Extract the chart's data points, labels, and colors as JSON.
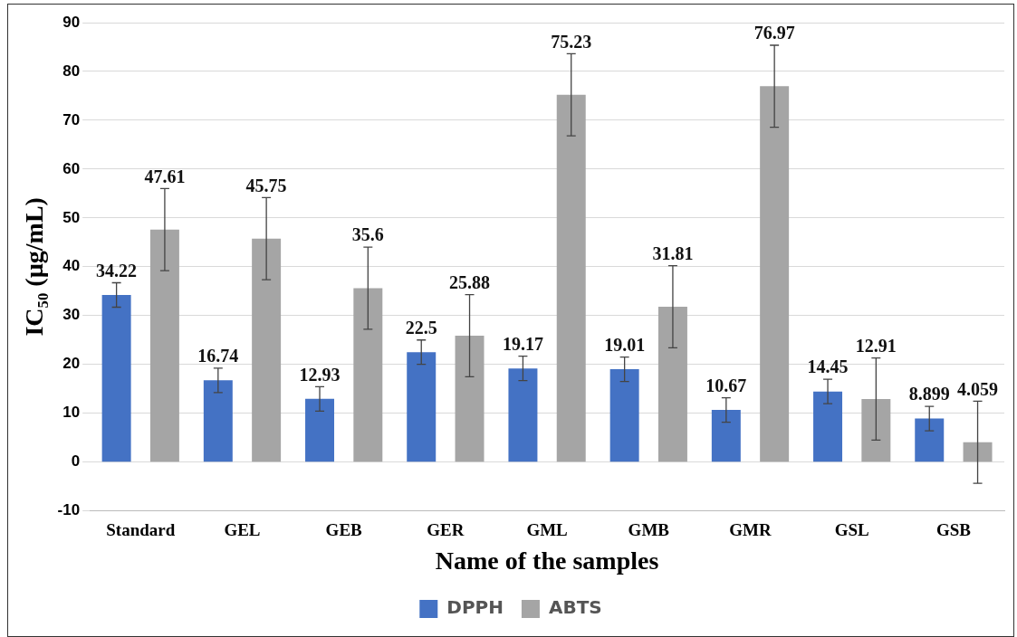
{
  "chart_data": {
    "type": "bar",
    "xlabel": "Name of the samples",
    "ylabel": "IC₅₀ (µg/mL)",
    "categories": [
      "Standard",
      "GEL",
      "GEB",
      "GER",
      "GML",
      "GMB",
      "GMR",
      "GSL",
      "GSB"
    ],
    "series": [
      {
        "name": "DPPH",
        "color": "#4472c4",
        "values": [
          34.22,
          16.74,
          12.93,
          22.5,
          19.17,
          19.01,
          10.67,
          14.45,
          8.899
        ],
        "errors": [
          2.5,
          2.5,
          2.5,
          2.5,
          2.5,
          2.5,
          2.5,
          2.5,
          2.5
        ]
      },
      {
        "name": "ABTS",
        "color": "#a5a5a5",
        "values": [
          47.61,
          45.75,
          35.6,
          25.88,
          75.23,
          31.81,
          76.97,
          12.91,
          4.059
        ],
        "errors": [
          8.4,
          8.4,
          8.4,
          8.4,
          8.4,
          8.4,
          8.4,
          8.4,
          8.4
        ]
      }
    ],
    "ylim": [
      -10,
      90
    ],
    "yticks": [
      -10,
      0,
      10,
      20,
      30,
      40,
      50,
      60,
      70,
      80,
      90
    ],
    "grid": "y",
    "legend": "bottom",
    "data_labels": true
  }
}
